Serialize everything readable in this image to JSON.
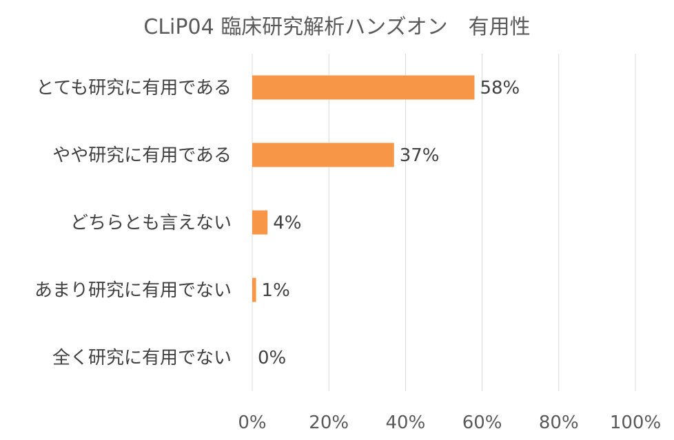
{
  "chart_data": {
    "type": "bar",
    "orientation": "horizontal",
    "title": "CLiP04 臨床研究解析ハンズオン　有用性",
    "categories": [
      "とても研究に有用である",
      "やや研究に有用である",
      "どちらとも言えない",
      "あまり研究に有用でない",
      "全く研究に有用でない"
    ],
    "values": [
      58,
      37,
      4,
      1,
      0
    ],
    "data_labels": [
      "58%",
      "37%",
      "4%",
      "1%",
      "0%"
    ],
    "xlim": [
      0,
      100
    ],
    "x_ticks": [
      0,
      20,
      40,
      60,
      80,
      100
    ],
    "x_tick_labels": [
      "0%",
      "20%",
      "40%",
      "60%",
      "80%",
      "100%"
    ],
    "xlabel": "",
    "ylabel": "",
    "grid": true,
    "legend": "none",
    "colors": {
      "bar": "#F79646",
      "grid": "#D9D9D9",
      "text": "#404040"
    }
  }
}
